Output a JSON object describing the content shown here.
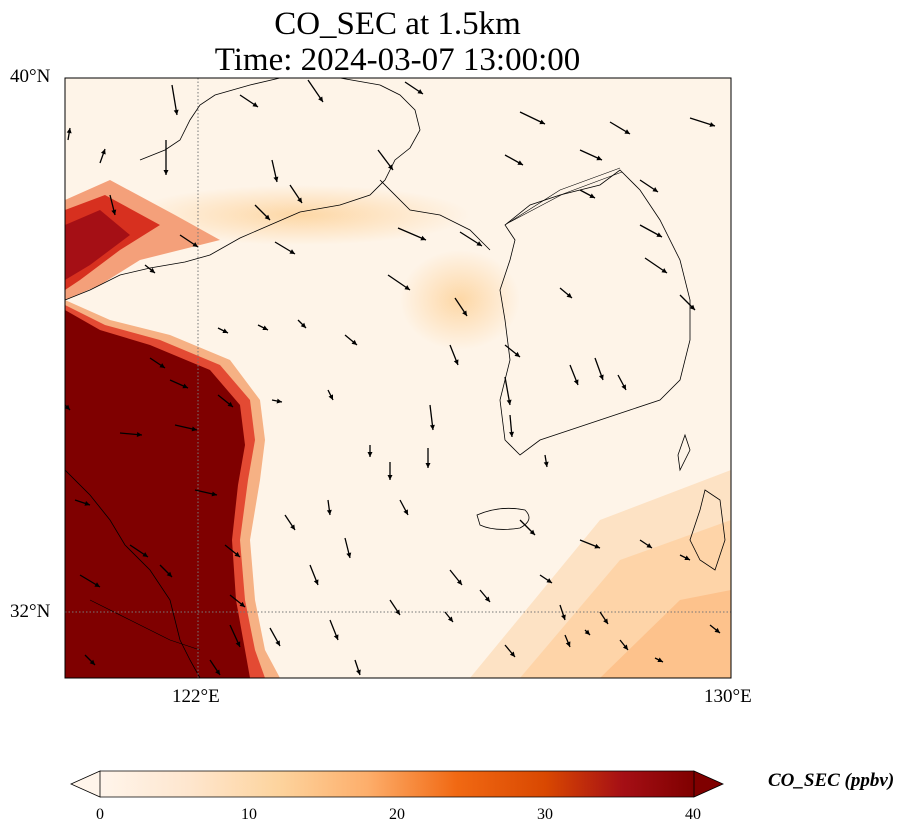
{
  "title_line1": "CO_SEC at 1.5km",
  "title_line2": "Time: 2024-03-07 13:00:00",
  "lat_labels": [
    "40°N",
    "32°N"
  ],
  "lon_labels": [
    "122°E",
    "130°E"
  ],
  "colorbar": {
    "label": "CO_SEC (ppbv)",
    "ticks": [
      "0",
      "10",
      "20",
      "30",
      "40"
    ],
    "min": 0,
    "max": 40,
    "extend": "both",
    "colors": [
      "#fff5eb",
      "#fdd49e",
      "#fdbb84",
      "#fc8d59",
      "#ef6548",
      "#d7301f",
      "#b30000",
      "#7f0000"
    ]
  },
  "map": {
    "lon_range": [
      120,
      130
    ],
    "lat_range": [
      31,
      40
    ],
    "gridlines": {
      "lons": [
        122
      ],
      "lats": [
        32
      ],
      "style": "dotted"
    }
  }
}
